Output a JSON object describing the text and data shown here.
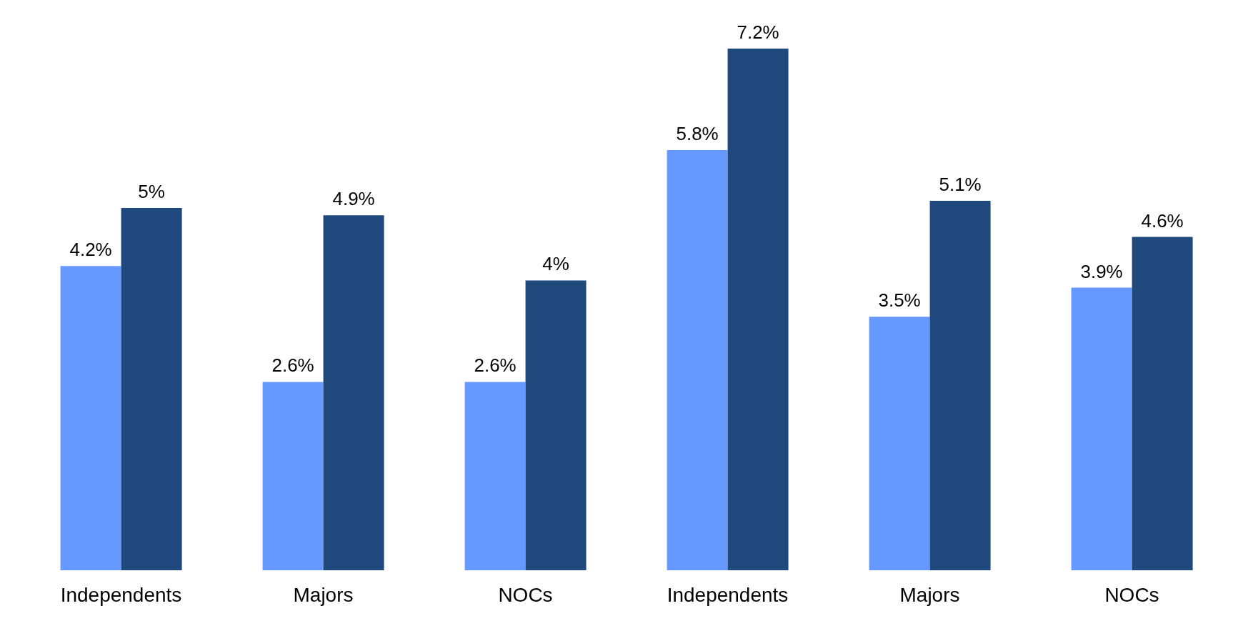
{
  "chart_data": {
    "type": "bar",
    "categories": [
      "Independents",
      "Majors",
      "NOCs",
      "Independents",
      "Majors",
      "NOCs"
    ],
    "series": [
      {
        "color": "#6699ff",
        "values": [
          4.2,
          2.6,
          2.6,
          5.8,
          3.5,
          3.9
        ],
        "value_labels": [
          "4.2%",
          "2.6%",
          "2.6%",
          "5.8%",
          "3.5%",
          "3.9%"
        ]
      },
      {
        "color": "#1f497d",
        "values": [
          5,
          4.9,
          4,
          7.2,
          5.1,
          4.6
        ],
        "value_labels": [
          "5%",
          "4.9%",
          "4%",
          "7.2%",
          "5.1%",
          "4.6%"
        ]
      }
    ],
    "grid": false,
    "legend": false
  }
}
